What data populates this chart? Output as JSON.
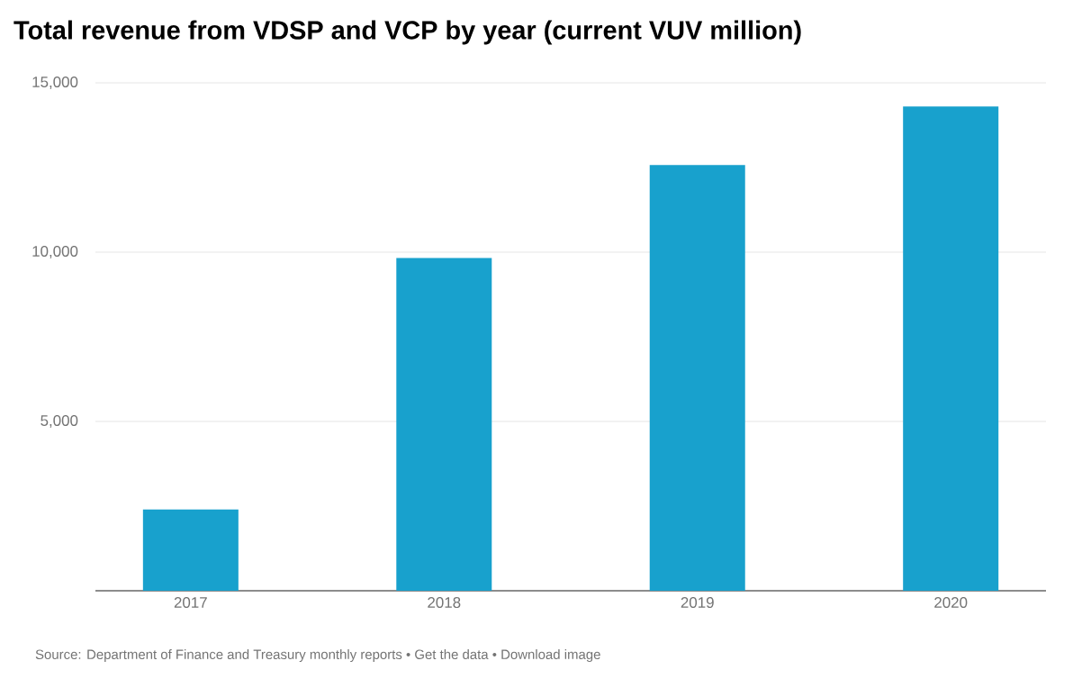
{
  "chart_data": {
    "type": "bar",
    "title": "Total revenue from VDSP and VCP by year (current VUV million)",
    "categories": [
      "2017",
      "2018",
      "2019",
      "2020"
    ],
    "values": [
      2400,
      9830,
      12570,
      14300
    ],
    "color": "#18a1cd",
    "ylim": [
      0,
      15000
    ],
    "yticks": [
      {
        "value": 5000,
        "label": "5,000"
      },
      {
        "value": 10000,
        "label": "10,000"
      },
      {
        "value": 15000,
        "label": "15,000"
      }
    ],
    "grid": "y",
    "annotations": [
      "Source: Department of Finance and Treasury monthly reports • Get the data • Download image"
    ]
  }
}
